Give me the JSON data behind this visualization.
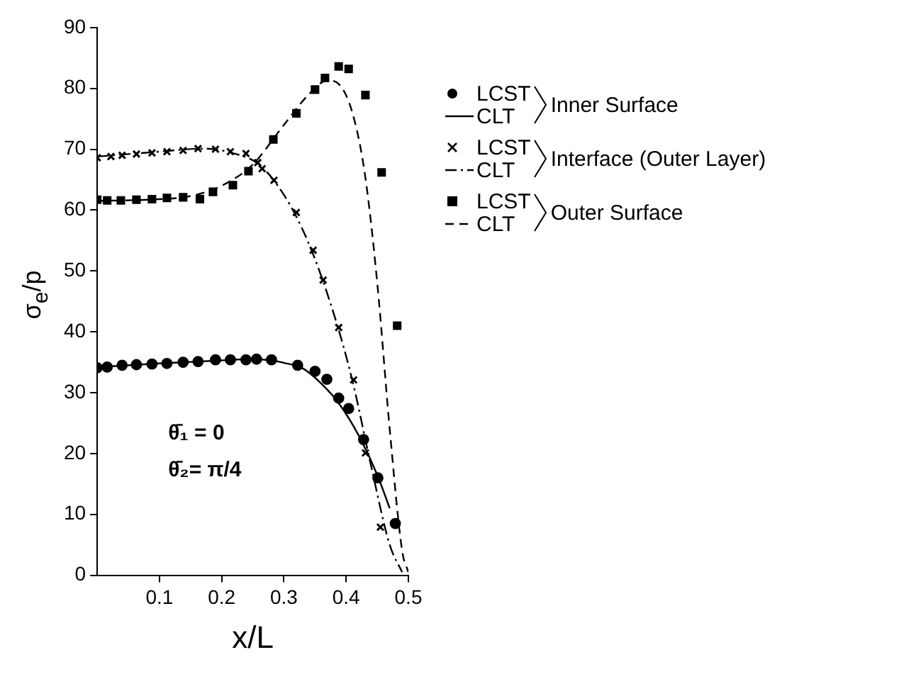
{
  "chart_data": {
    "type": "scatter",
    "xlabel": "x/L",
    "ylabel": "σ$_{e}$/p",
    "xlim": [
      0,
      0.5
    ],
    "xticks": [
      0.1,
      0.2,
      0.3,
      0.4,
      0.5
    ],
    "ylim": [
      0,
      90
    ],
    "yticks": [
      0,
      10,
      20,
      30,
      40,
      50,
      60,
      70,
      80,
      90
    ],
    "grid": false,
    "legend": "top right",
    "annotations": [
      "Inner Surface",
      "Interface (Outer Layer)",
      "Outer Surface",
      "θ̄₁ = 0",
      "θ̄₂= π/4"
    ],
    "series": [
      {
        "name": "LCST",
        "type": "scatter",
        "marker": "circle",
        "color": "#000000",
        "x": [
          0,
          0.016,
          0.04,
          0.063,
          0.088,
          0.112,
          0.138,
          0.162,
          0.19,
          0.214,
          0.239,
          0.256,
          0.28,
          0.322,
          0.35,
          0.369,
          0.388,
          0.404,
          0.428,
          0.451,
          0.479
        ],
        "values": [
          34.1,
          34.2,
          34.5,
          34.6,
          34.7,
          34.8,
          35.0,
          35.1,
          35.4,
          35.4,
          35.4,
          35.5,
          35.4,
          34.5,
          33.5,
          32.2,
          29.1,
          27.4,
          22.3,
          16.0,
          8.5
        ]
      },
      {
        "name": "CLT",
        "type": "line",
        "marker": "none",
        "line_style": "solid",
        "color": "#000000",
        "x": [
          0,
          0.1,
          0.2,
          0.25,
          0.28,
          0.3,
          0.33,
          0.36,
          0.39,
          0.42,
          0.45,
          0.47
        ],
        "values": [
          34.2,
          34.8,
          35.3,
          35.5,
          35.3,
          34.9,
          34,
          31.5,
          28,
          23,
          16.5,
          11
        ]
      },
      {
        "name": "LCST",
        "type": "scatter",
        "marker": "cross",
        "color": "#000000",
        "x": [
          0,
          0.022,
          0.04,
          0.063,
          0.088,
          0.112,
          0.138,
          0.162,
          0.19,
          0.214,
          0.239,
          0.258,
          0.265,
          0.284,
          0.32,
          0.347,
          0.363,
          0.388,
          0.412,
          0.431,
          0.455
        ],
        "values": [
          68.6,
          68.8,
          69.0,
          69.2,
          69.4,
          69.6,
          69.8,
          70.1,
          70.0,
          69.6,
          69.3,
          67.8,
          66.8,
          64.9,
          59.6,
          53.4,
          48.5,
          40.7,
          32.1,
          20.1,
          7.9
        ]
      },
      {
        "name": "CLT",
        "type": "line",
        "marker": "none",
        "line_style": "dotted",
        "color": "#000000",
        "x": [
          0,
          0.1,
          0.17,
          0.22,
          0.26,
          0.3,
          0.34,
          0.38,
          0.41,
          0.44,
          0.47,
          0.49
        ],
        "values": [
          68.8,
          69.6,
          70.1,
          69.3,
          67.5,
          62.5,
          54.5,
          43,
          32,
          18,
          5,
          0.5
        ]
      },
      {
        "name": "LCST",
        "type": "scatter",
        "marker": "square",
        "color": "#000000",
        "x": [
          0,
          0.016,
          0.038,
          0.063,
          0.088,
          0.112,
          0.138,
          0.165,
          0.186,
          0.218,
          0.243,
          0.283,
          0.32,
          0.35,
          0.366,
          0.388,
          0.404,
          0.431,
          0.457,
          0.482
        ],
        "values": [
          61.7,
          61.6,
          61.6,
          61.7,
          61.8,
          62.0,
          62.1,
          61.8,
          63.0,
          64.1,
          66.4,
          71.6,
          75.9,
          79.8,
          81.7,
          83.6,
          83.2,
          78.9,
          66.2,
          41.0
        ]
      },
      {
        "name": "CLT",
        "type": "line",
        "marker": "none",
        "line_style": "dashed",
        "color": "#000000",
        "x": [
          0,
          0.1,
          0.15,
          0.2,
          0.25,
          0.3,
          0.34,
          0.37,
          0.39,
          0.41,
          0.43,
          0.45,
          0.47,
          0.49,
          0.5
        ],
        "values": [
          61.5,
          61.8,
          62.3,
          64,
          67.5,
          74,
          79,
          81.3,
          80.5,
          76,
          66,
          48,
          24,
          4,
          0.5
        ]
      }
    ]
  }
}
